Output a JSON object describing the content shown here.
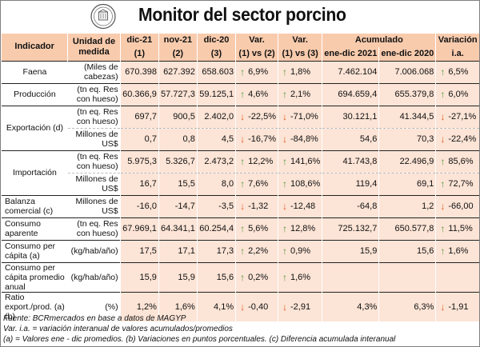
{
  "header": {
    "title": "Monitor del sector porcino"
  },
  "columns": {
    "indicador": "Indicador",
    "unidad": "Unidad de medida",
    "c1": [
      "dic-21",
      "(1)"
    ],
    "c2": [
      "nov-21",
      "(2)"
    ],
    "c3": [
      "dic-20",
      "(3)"
    ],
    "v1": [
      "Var.",
      "(1) vs (2)"
    ],
    "v2": [
      "Var.",
      "(1) vs (3)"
    ],
    "acum": "Acumulado",
    "a1": "ene-dic 2021",
    "a2": "ene-dic 2020",
    "vi": [
      "Variación",
      "i.a."
    ]
  },
  "rows": [
    {
      "indicador": "Faena",
      "unidad": "(Miles de cabezas)",
      "c1": "670.398",
      "c2": "627.392",
      "c3": "658.603",
      "v1": "6,9%",
      "v1_dir": "up",
      "v2": "1,8%",
      "v2_dir": "up",
      "a1": "7.462.104",
      "a2": "7.006.068",
      "vi": "6,5%",
      "vi_dir": "up"
    },
    {
      "indicador": "Producción",
      "unidad": "(tn eq. Res con hueso)",
      "c1": "60.366,9",
      "c2": "57.727,3",
      "c3": "59.125,1",
      "v1": "4,6%",
      "v1_dir": "up",
      "v2": "2,1%",
      "v2_dir": "up",
      "a1": "694.659,4",
      "a2": "655.379,8",
      "vi": "6,0%",
      "vi_dir": "up"
    },
    {
      "indicador": "Exportación (d)",
      "unidad": "(tn eq. Res con hueso)",
      "c1": "697,7",
      "c2": "900,5",
      "c3": "2.402,0",
      "v1": "-22,5%",
      "v1_dir": "down",
      "v2": "-71,0%",
      "v2_dir": "down",
      "a1": "30.121,1",
      "a2": "41.344,5",
      "vi": "-27,1%",
      "vi_dir": "down"
    },
    {
      "indicador": "",
      "unidad": "Millones de US$",
      "c1": "0,7",
      "c2": "0,8",
      "c3": "4,5",
      "v1": "-16,7%",
      "v1_dir": "down",
      "v2": "-84,8%",
      "v2_dir": "down",
      "a1": "54,6",
      "a2": "70,3",
      "vi": "-22,4%",
      "vi_dir": "down"
    },
    {
      "indicador": "Importación",
      "unidad": "(tn eq. Res con hueso)",
      "c1": "5.975,3",
      "c2": "5.326,7",
      "c3": "2.473,2",
      "v1": "12,2%",
      "v1_dir": "up",
      "v2": "141,6%",
      "v2_dir": "up",
      "a1": "41.743,8",
      "a2": "22.496,9",
      "vi": "85,6%",
      "vi_dir": "up"
    },
    {
      "indicador": "",
      "unidad": "Millones de US$",
      "c1": "16,7",
      "c2": "15,5",
      "c3": "8,0",
      "v1": "7,6%",
      "v1_dir": "up",
      "v2": "108,6%",
      "v2_dir": "up",
      "a1": "119,4",
      "a2": "69,1",
      "vi": "72,7%",
      "vi_dir": "up"
    },
    {
      "indicador": "Balanza comercial (c)",
      "unidad": "Millones de US$",
      "c1": "-16,0",
      "c2": "-14,7",
      "c3": "-3,5",
      "v1": "-1,32",
      "v1_dir": "down",
      "v2": "-12,48",
      "v2_dir": "down",
      "a1": "-64,8",
      "a2": "1,2",
      "vi": "-66,00",
      "vi_dir": "down"
    },
    {
      "indicador": "Consumo aparente",
      "unidad": "(tn eq. Res con hueso)",
      "c1": "67.969,1",
      "c2": "64.341,1",
      "c3": "60.254,4",
      "v1": "5,6%",
      "v1_dir": "up",
      "v2": "12,8%",
      "v2_dir": "up",
      "a1": "725.132,7",
      "a2": "650.577,8",
      "vi": "11,5%",
      "vi_dir": "up"
    },
    {
      "indicador": "Consumo per cápita (a)",
      "unidad": "(kg/hab/año)",
      "c1": "17,5",
      "c2": "17,1",
      "c3": "17,3",
      "v1": "2,2%",
      "v1_dir": "up",
      "v2": "0,9%",
      "v2_dir": "up",
      "a1": "15,9",
      "a2": "15,6",
      "vi": "1,6%",
      "vi_dir": "up"
    },
    {
      "indicador": "Consumo per cápita promedio anual",
      "unidad": "(kg/hab/año)",
      "c1": "15,9",
      "c2": "15,9",
      "c3": "15,6",
      "v1": "0,2%",
      "v1_dir": "up",
      "v2": "1,6%",
      "v2_dir": "up",
      "a1": "",
      "a2": "",
      "vi": "",
      "vi_dir": ""
    },
    {
      "indicador": "Ratio export./prod. (a)(b)",
      "unidad": "(%)",
      "c1": "1,2%",
      "c2": "1,6%",
      "c3": "4,1%",
      "v1": "-0,40",
      "v1_dir": "down",
      "v2": "-2,91",
      "v2_dir": "down",
      "a1": "4,3%",
      "a2": "6,3%",
      "vi": "-1,91",
      "vi_dir": "down"
    }
  ],
  "footer": {
    "line1": "Fuente: BCRmercados en base a datos de MAGYP",
    "line2": "Var. i.a. = variación interanual de valores acumulados/promedios",
    "line3": "(a) = Valores ene - dic promedios. (b) Variaciones en puntos porcentuales. (c) Diferencia acumulada interanual"
  },
  "icons": {
    "up": "arrow-up-icon",
    "down": "arrow-down-icon",
    "logo": "bcr-logo-icon"
  },
  "colors": {
    "header_bg": "#f8cbad",
    "data_bg": "#fce4d6",
    "up": "#4f9a3a",
    "down": "#e2571b"
  }
}
